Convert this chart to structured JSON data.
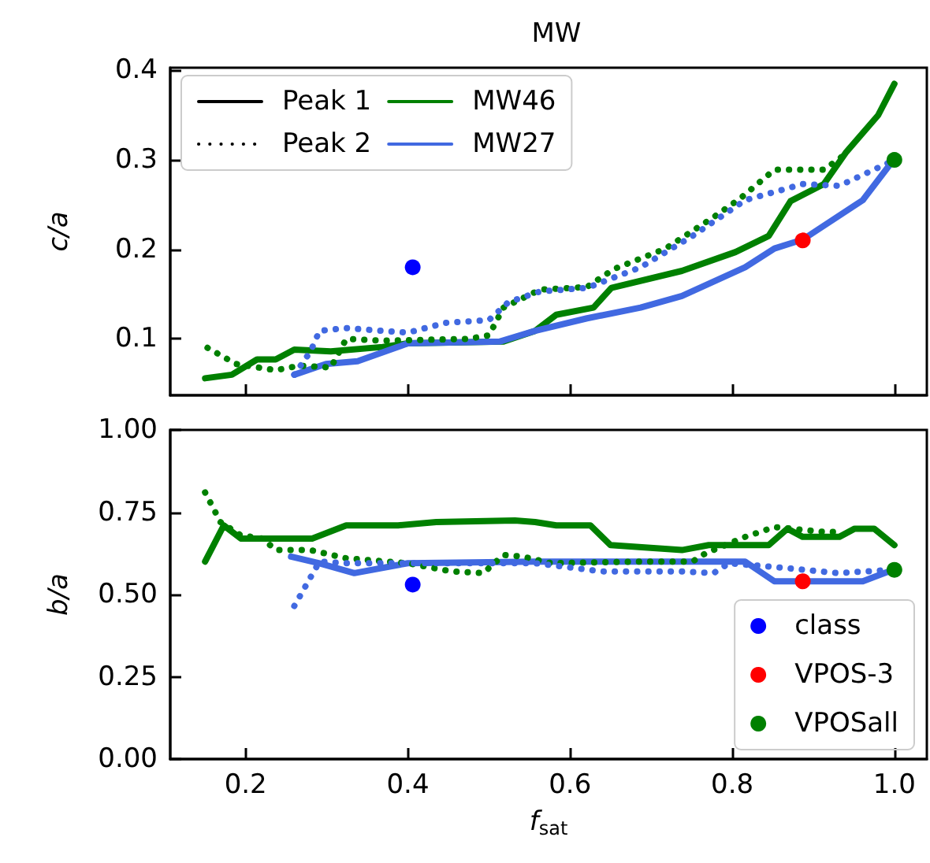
{
  "chart_data": [
    {
      "type": "line",
      "title": "MW",
      "ylabel": "c/a",
      "xlim": [
        0.107,
        1.04
      ],
      "ylim": [
        0.037,
        0.403
      ],
      "xticks": [
        0.2,
        0.4,
        0.6,
        0.8,
        1
      ],
      "yticks": [
        0.1,
        0.2,
        0.3,
        0.4
      ],
      "tick_labels": "y",
      "legend": "top left",
      "series": [
        {
          "name": "Peak 1",
          "color": "#000000",
          "line_style": "solid"
        },
        {
          "name": "Peak 2",
          "color": "#000000",
          "line_style": "dotted"
        },
        {
          "name": "MW46",
          "color": "#008000",
          "line_style": "solid",
          "x": [
            0.15,
            0.183,
            0.214,
            0.237,
            0.26,
            0.305,
            0.369,
            0.4,
            0.518,
            0.557,
            0.583,
            0.629,
            0.651,
            0.738,
            0.804,
            0.845,
            0.872,
            0.913,
            0.94,
            0.98,
            1.0
          ],
          "values": [
            0.056,
            0.06,
            0.077,
            0.077,
            0.088,
            0.086,
            0.091,
            0.095,
            0.097,
            0.109,
            0.127,
            0.135,
            0.157,
            0.176,
            0.197,
            0.215,
            0.254,
            0.273,
            0.308,
            0.35,
            0.385
          ]
        },
        {
          "name": "MW27",
          "color": "#4169e1",
          "line_style": "solid",
          "x": [
            0.26,
            0.299,
            0.338,
            0.4,
            0.513,
            0.557,
            0.621,
            0.687,
            0.738,
            0.816,
            0.852,
            0.887,
            0.961,
            0.998
          ],
          "values": [
            0.06,
            0.072,
            0.075,
            0.095,
            0.097,
            0.109,
            0.123,
            0.135,
            0.148,
            0.18,
            0.201,
            0.211,
            0.255,
            0.299
          ]
        },
        {
          "color": "#008000",
          "line_style": "dotted",
          "x": [
            0.153,
            0.188,
            0.237,
            0.266,
            0.305,
            0.324,
            0.369,
            0.474,
            0.5,
            0.518,
            0.563,
            0.621,
            0.654,
            0.718,
            0.777,
            0.81,
            0.852,
            0.913,
            0.942
          ],
          "values": [
            0.09,
            0.072,
            0.065,
            0.07,
            0.068,
            0.1,
            0.098,
            0.1,
            0.104,
            0.135,
            0.155,
            0.158,
            0.178,
            0.201,
            0.236,
            0.257,
            0.289,
            0.289,
            0.308
          ]
        },
        {
          "color": "#4169e1",
          "line_style": "dotted",
          "x": [
            0.26,
            0.28,
            0.291,
            0.324,
            0.4,
            0.447,
            0.5,
            0.524,
            0.563,
            0.621,
            0.687,
            0.751,
            0.816,
            0.887,
            0.932,
            0.998
          ],
          "values": [
            0.06,
            0.086,
            0.109,
            0.112,
            0.107,
            0.118,
            0.121,
            0.141,
            0.153,
            0.157,
            0.18,
            0.215,
            0.255,
            0.273,
            0.271,
            0.299
          ]
        },
        {
          "type": "scatter",
          "marker": "circle",
          "color": "#0000ff",
          "x": [
            0.406
          ],
          "values": [
            0.18
          ]
        },
        {
          "type": "scatter",
          "marker": "circle",
          "color": "#ff0000",
          "x": [
            0.887
          ],
          "values": [
            0.21
          ]
        },
        {
          "type": "scatter",
          "marker": "circle",
          "color": "#008000",
          "x": [
            1.0
          ],
          "values": [
            0.3
          ]
        }
      ]
    },
    {
      "type": "line",
      "xlabel": "f$_{sat}$",
      "ylabel": "b/a",
      "xlim": [
        0.107,
        1.04
      ],
      "ylim": [
        0,
        1
      ],
      "xticks": [
        0.2,
        0.4,
        0.6,
        0.8,
        {
          "value": 1,
          "label": "1.0"
        }
      ],
      "yticks": [
        {
          "value": 0,
          "label": "0.00"
        },
        {
          "value": 0.25,
          "label": "0.25"
        },
        {
          "value": 0.5,
          "label": "0.50"
        },
        {
          "value": 0.75,
          "label": "0.75"
        },
        {
          "value": 1,
          "label": "1.00"
        }
      ],
      "legend": "bottom right",
      "series": [
        {
          "color": "#008000",
          "line_style": "solid",
          "x": [
            0.15,
            0.173,
            0.194,
            0.241,
            0.282,
            0.324,
            0.388,
            0.435,
            0.532,
            0.557,
            0.583,
            0.625,
            0.65,
            0.738,
            0.771,
            0.845,
            0.868,
            0.887,
            0.932,
            0.951,
            0.975,
            1.0
          ],
          "values": [
            0.6,
            0.71,
            0.67,
            0.67,
            0.67,
            0.71,
            0.71,
            0.72,
            0.725,
            0.72,
            0.71,
            0.71,
            0.65,
            0.635,
            0.65,
            0.65,
            0.7,
            0.675,
            0.675,
            0.7,
            0.7,
            0.65
          ]
        },
        {
          "color": "#4169e1",
          "line_style": "solid",
          "x": [
            0.256,
            0.291,
            0.334,
            0.4,
            0.557,
            0.816,
            0.852,
            0.961,
            0.998
          ],
          "values": [
            0.615,
            0.595,
            0.565,
            0.595,
            0.6,
            0.6,
            0.54,
            0.54,
            0.575
          ]
        },
        {
          "color": "#008000",
          "line_style": "dotted",
          "x": [
            0.15,
            0.169,
            0.194,
            0.221,
            0.237,
            0.28,
            0.324,
            0.4,
            0.454,
            0.493,
            0.518,
            0.542,
            0.577,
            0.687,
            0.751,
            0.767,
            0.816,
            0.852,
            0.913,
            0.932
          ],
          "values": [
            0.81,
            0.72,
            0.68,
            0.67,
            0.635,
            0.635,
            0.61,
            0.595,
            0.57,
            0.565,
            0.62,
            0.615,
            0.595,
            0.6,
            0.6,
            0.625,
            0.675,
            0.705,
            0.69,
            0.69
          ]
        },
        {
          "color": "#4169e1",
          "line_style": "dotted",
          "x": [
            0.26,
            0.291,
            0.324,
            0.4,
            0.557,
            0.64,
            0.738,
            0.777,
            0.796,
            0.868,
            0.93,
            0.998
          ],
          "values": [
            0.465,
            0.6,
            0.595,
            0.595,
            0.595,
            0.57,
            0.57,
            0.565,
            0.595,
            0.58,
            0.565,
            0.575
          ]
        },
        {
          "type": "scatter",
          "name": "class",
          "marker": "circle",
          "color": "#0000ff",
          "x": [
            0.406
          ],
          "values": [
            0.53
          ]
        },
        {
          "type": "scatter",
          "name": "VPOS-3",
          "marker": "circle",
          "color": "#ff0000",
          "x": [
            0.887
          ],
          "values": [
            0.54
          ]
        },
        {
          "type": "scatter",
          "name": "VPOSall",
          "marker": "circle",
          "color": "#008000",
          "x": [
            1.0
          ],
          "values": [
            0.575
          ]
        }
      ]
    }
  ]
}
